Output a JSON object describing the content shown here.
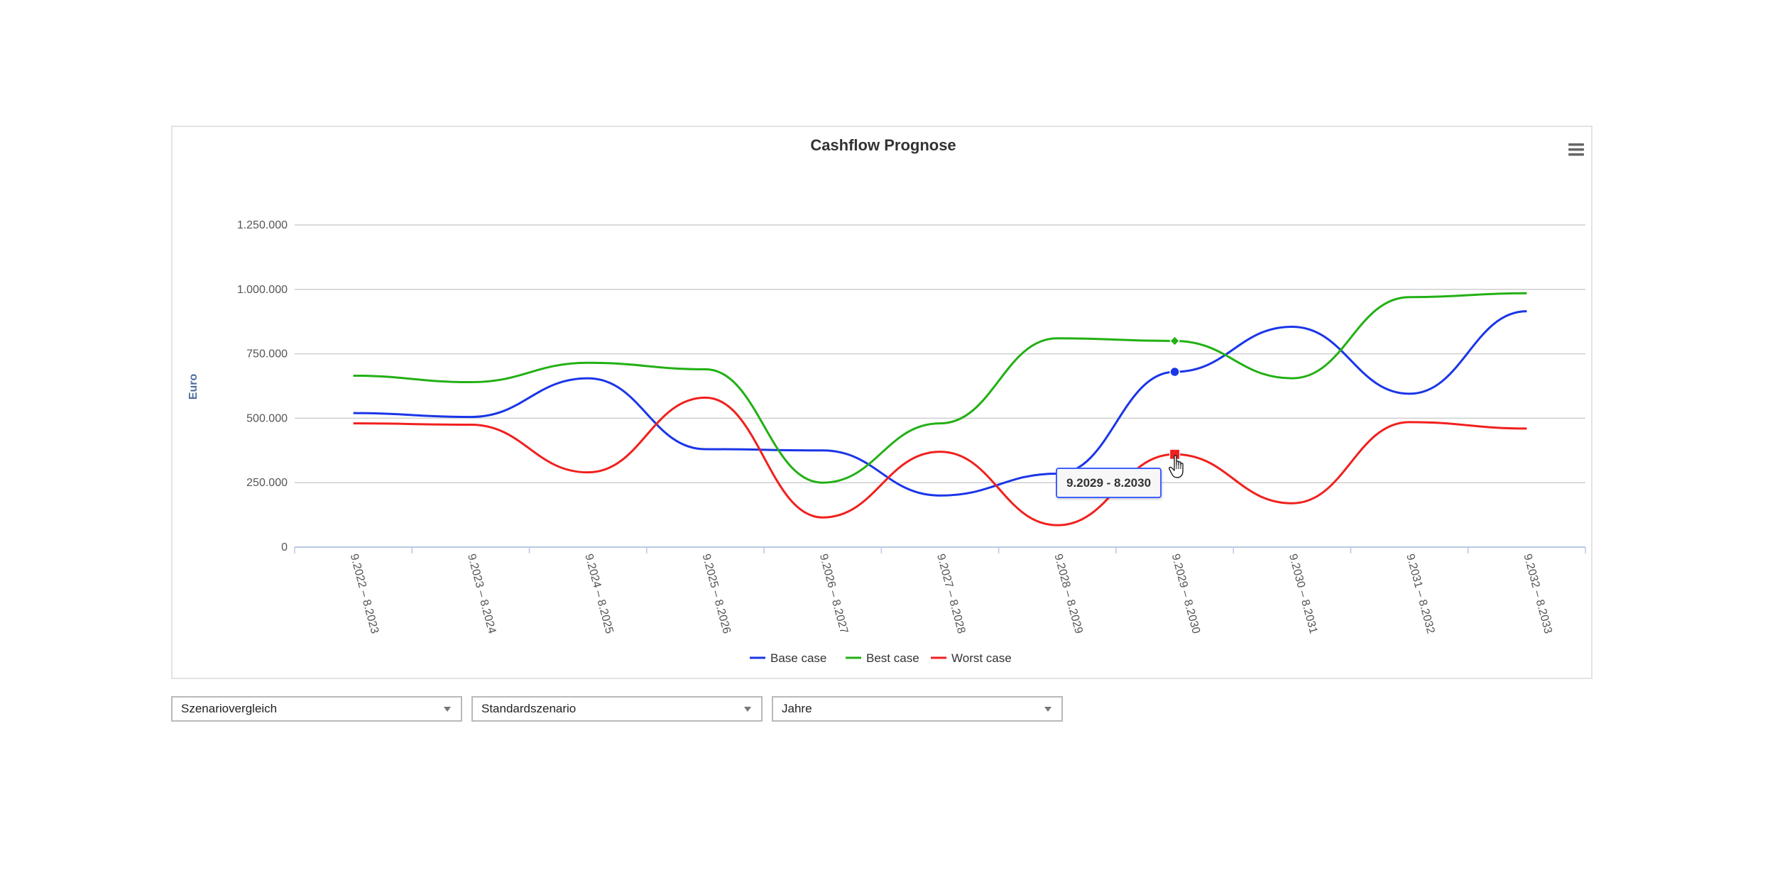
{
  "chart_data": {
    "type": "line",
    "title": "Cashflow Prognose",
    "ylabel": "Euro",
    "xlabel": "",
    "categories": [
      "9.2022 – 8.2023",
      "9.2023 – 8.2024",
      "9.2024 – 8.2025",
      "9.2025 – 8.2026",
      "9.2026 – 8.2027",
      "9.2027 – 8.2028",
      "9.2028 – 8.2029",
      "9.2029 – 8.2030",
      "9.2030 – 8.2031",
      "9.2031 – 8.2032",
      "9.2032 – 8.2033"
    ],
    "ylim": [
      0,
      1250000
    ],
    "yticks": [
      0,
      250000,
      500000,
      750000,
      1000000,
      1250000
    ],
    "ytick_labels": [
      "0",
      "250.000",
      "500.000",
      "750.000",
      "1.000.000",
      "1.250.000"
    ],
    "grid": true,
    "legend_position": "bottom-center",
    "series": [
      {
        "name": "Base case",
        "color": "#1a35e8",
        "marker": "circle",
        "values": [
          520000,
          505000,
          655000,
          380000,
          375000,
          200000,
          285000,
          680000,
          855000,
          595000,
          915000
        ]
      },
      {
        "name": "Best case",
        "color": "#22b014",
        "marker": "diamond",
        "values": [
          665000,
          640000,
          715000,
          690000,
          250000,
          480000,
          810000,
          800000,
          655000,
          970000,
          985000
        ]
      },
      {
        "name": "Worst case",
        "color": "#f0201e",
        "marker": "square",
        "values": [
          480000,
          475000,
          290000,
          580000,
          115000,
          370000,
          85000,
          360000,
          170000,
          485000,
          460000
        ]
      }
    ],
    "highlight_index": 7,
    "tooltip_text": "9.2029 - 8.2030"
  },
  "menu": {
    "icon": "hamburger-menu-icon"
  },
  "controls": {
    "select1": "Szenariovergleich",
    "select2": "Standardszenario",
    "select3": "Jahre"
  }
}
